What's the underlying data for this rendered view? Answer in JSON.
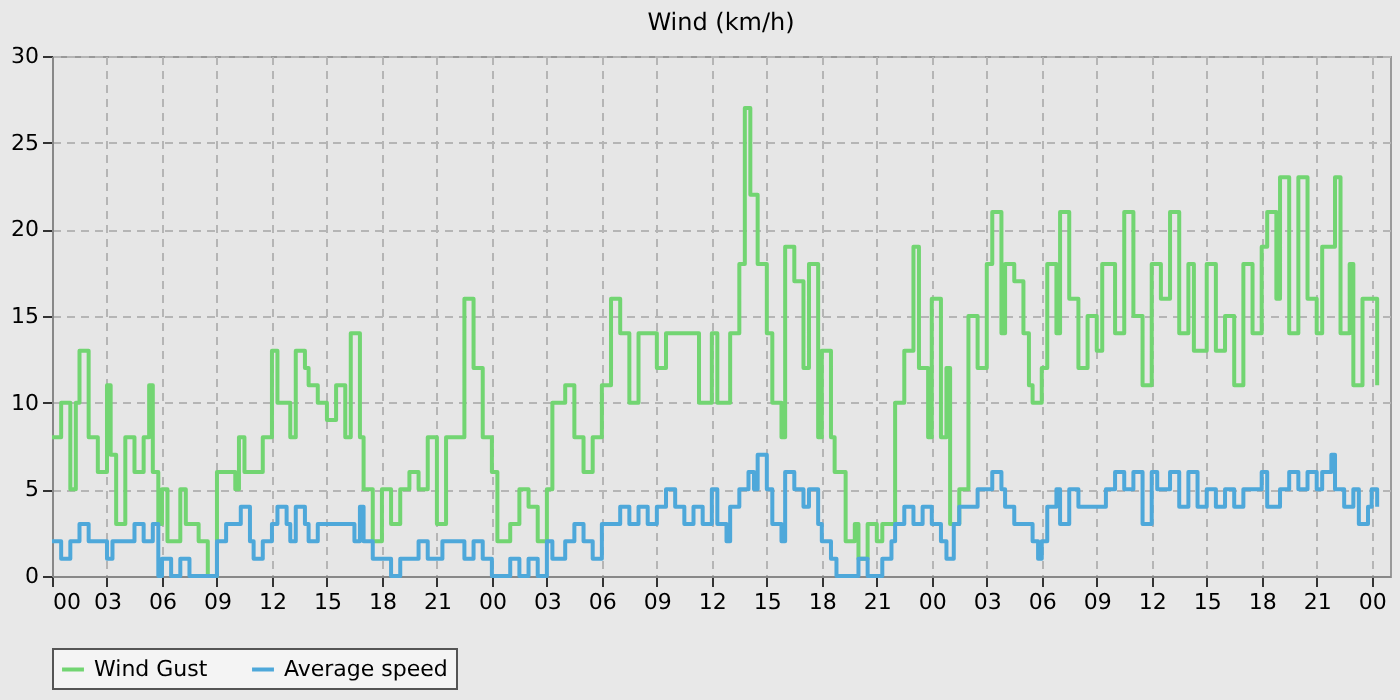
{
  "chart_data": {
    "type": "step",
    "title": "Wind (km/h)",
    "legend": "bottom",
    "grid": true,
    "line_style": "solid",
    "marker": "none",
    "xlim": [
      0,
      73
    ],
    "xticks": [
      {
        "value": 0,
        "label": "00"
      },
      {
        "value": 3,
        "label": "03"
      },
      {
        "value": 6,
        "label": "06"
      },
      {
        "value": 9,
        "label": "09"
      },
      {
        "value": 12,
        "label": "12"
      },
      {
        "value": 15,
        "label": "15"
      },
      {
        "value": 18,
        "label": "18"
      },
      {
        "value": 21,
        "label": "21"
      },
      {
        "value": 24,
        "label": "00"
      },
      {
        "value": 27,
        "label": "03"
      },
      {
        "value": 30,
        "label": "06"
      },
      {
        "value": 33,
        "label": "09"
      },
      {
        "value": 36,
        "label": "12"
      },
      {
        "value": 39,
        "label": "15"
      },
      {
        "value": 42,
        "label": "18"
      },
      {
        "value": 45,
        "label": "21"
      },
      {
        "value": 48,
        "label": "00"
      },
      {
        "value": 51,
        "label": "03"
      },
      {
        "value": 54,
        "label": "06"
      },
      {
        "value": 57,
        "label": "09"
      },
      {
        "value": 60,
        "label": "12"
      },
      {
        "value": 63,
        "label": "15"
      },
      {
        "value": 66,
        "label": "18"
      },
      {
        "value": 69,
        "label": "21"
      },
      {
        "value": 72,
        "label": "00"
      }
    ],
    "ylim": [
      0,
      30
    ],
    "yticks": [
      0,
      5,
      10,
      15,
      20,
      25,
      30
    ],
    "series": [
      {
        "name": "Wind Gust",
        "color": "#72d572",
        "x": [
          0,
          0.5,
          1,
          1.3,
          1.5,
          1.8,
          2,
          2.5,
          3,
          3.2,
          3.5,
          4,
          4.5,
          5,
          5.3,
          5.5,
          5.8,
          6,
          6.3,
          7,
          7.3,
          8,
          8.5,
          9,
          10,
          10.2,
          10.5,
          11.5,
          12,
          12.3,
          13,
          13.3,
          13.8,
          14,
          14.5,
          15,
          15.5,
          16,
          16.3,
          16.8,
          17,
          17.5,
          18,
          18.5,
          19,
          19.5,
          20,
          20.5,
          21,
          21.5,
          22,
          22.5,
          23,
          23.5,
          24,
          24.3,
          25,
          25.5,
          26,
          26.5,
          27,
          27.3,
          28,
          28.5,
          29,
          29.5,
          30,
          30.5,
          31,
          31.5,
          32,
          33,
          33.5,
          35,
          35.3,
          36,
          36.3,
          37,
          37.5,
          37.8,
          38.1,
          38.5,
          39,
          39.3,
          39.8,
          40,
          40.5,
          41,
          41.3,
          41.8,
          42,
          42.5,
          42.7,
          43,
          43.3,
          43.8,
          44,
          44.5,
          45,
          45.3,
          46,
          46.5,
          47,
          47.3,
          47.8,
          48,
          48.5,
          48.8,
          49,
          49.5,
          50,
          50.5,
          51,
          51.3,
          51.8,
          52,
          52.5,
          53,
          53.3,
          53.5,
          54,
          54.3,
          54.8,
          55,
          55.5,
          56,
          56.5,
          57,
          57.3,
          58,
          58.5,
          59,
          59.5,
          60,
          60.5,
          61,
          61.5,
          62,
          62.3,
          63,
          63.5,
          64,
          64.5,
          65,
          65.5,
          66,
          66.3,
          66.8,
          67,
          67.5,
          68,
          68.5,
          69,
          69.3,
          70,
          70.3,
          70.8,
          71,
          71.5,
          72,
          72.3
        ],
        "values": [
          8,
          10,
          5,
          10,
          13,
          13,
          8,
          6,
          11,
          7,
          3,
          8,
          6,
          8,
          11,
          6,
          3,
          5,
          2,
          5,
          3,
          2,
          0,
          6,
          5,
          8,
          6,
          8,
          13,
          10,
          8,
          13,
          12,
          11,
          10,
          9,
          11,
          8,
          14,
          8,
          5,
          2,
          5,
          3,
          5,
          6,
          5,
          8,
          3,
          8,
          8,
          16,
          12,
          8,
          6,
          2,
          3,
          5,
          4,
          2,
          5,
          10,
          11,
          8,
          6,
          8,
          11,
          16,
          14,
          10,
          14,
          12,
          14,
          14,
          10,
          14,
          10,
          14,
          18,
          27,
          22,
          18,
          14,
          10,
          8,
          19,
          17,
          12,
          18,
          8,
          13,
          8,
          6,
          6,
          2,
          3,
          1,
          3,
          2,
          3,
          10,
          13,
          19,
          12,
          8,
          16,
          8,
          12,
          3,
          5,
          15,
          12,
          18,
          21,
          14,
          18,
          17,
          14,
          11,
          10,
          12,
          18,
          14,
          21,
          16,
          12,
          15,
          13,
          18,
          14,
          21,
          15,
          11,
          18,
          16,
          21,
          14,
          18,
          13,
          18,
          13,
          15,
          11,
          18,
          14,
          19,
          21,
          16,
          23,
          14,
          23,
          16,
          14,
          19,
          23,
          14,
          18,
          11,
          16,
          16,
          11
        ]
      },
      {
        "name": "Average speed",
        "color": "#4ea8da",
        "x": [
          0,
          0.5,
          1,
          1.5,
          2,
          3,
          3.3,
          4.5,
          5,
          5.5,
          5.8,
          6,
          6.5,
          7,
          7.5,
          9,
          9.5,
          10.3,
          10.8,
          11,
          11.5,
          12,
          12.3,
          12.8,
          13,
          13.3,
          13.8,
          14,
          14.5,
          16.5,
          16.8,
          17,
          17.5,
          18.5,
          19,
          20,
          20.5,
          21.3,
          22.5,
          23,
          23.5,
          24,
          25,
          25.5,
          26,
          26.5,
          27,
          27.3,
          28,
          28.5,
          29,
          29.5,
          30,
          31,
          31.5,
          32,
          32.5,
          33,
          33.5,
          34,
          34.5,
          35,
          35.5,
          36,
          36.3,
          36.8,
          37,
          37.5,
          38,
          38.3,
          38.5,
          39,
          39.3,
          39.8,
          40,
          40.5,
          41,
          41.3,
          41.8,
          42,
          42.5,
          42.8,
          44,
          44.5,
          45.3,
          45.8,
          46,
          46.5,
          47,
          47.5,
          48,
          48.5,
          48.8,
          49.2,
          49.5,
          50.5,
          51.3,
          51.8,
          52,
          52.5,
          53,
          53.5,
          53.8,
          54,
          54.3,
          54.8,
          55,
          55.5,
          56,
          57.5,
          58,
          58.5,
          59,
          59.5,
          60,
          60.3,
          61,
          61.5,
          62,
          62.5,
          63,
          63.5,
          64,
          64.5,
          65,
          66,
          66.3,
          67,
          67.5,
          68,
          68.5,
          69,
          69.3,
          69.8,
          70,
          70.5,
          71,
          71.3,
          71.8,
          72,
          72.3
        ],
        "values": [
          2,
          1,
          2,
          3,
          2,
          1,
          2,
          3,
          2,
          3,
          0,
          1,
          0,
          1,
          0,
          2,
          3,
          4,
          2,
          1,
          2,
          3,
          4,
          3,
          2,
          4,
          3,
          2,
          3,
          2,
          4,
          2,
          1,
          0,
          1,
          2,
          1,
          2,
          1,
          2,
          1,
          0,
          1,
          0,
          1,
          0,
          2,
          1,
          2,
          3,
          2,
          1,
          3,
          4,
          3,
          4,
          3,
          4,
          5,
          4,
          3,
          4,
          3,
          5,
          3,
          2,
          4,
          5,
          6,
          5,
          7,
          5,
          3,
          2,
          6,
          5,
          4,
          5,
          3,
          2,
          1,
          0,
          1,
          0,
          1,
          2,
          3,
          4,
          3,
          4,
          3,
          2,
          1,
          3,
          4,
          5,
          6,
          5,
          4,
          3,
          3,
          2,
          1,
          2,
          4,
          5,
          3,
          5,
          4,
          5,
          6,
          5,
          6,
          3,
          6,
          5,
          6,
          4,
          6,
          4,
          5,
          4,
          5,
          4,
          5,
          6,
          4,
          5,
          6,
          5,
          6,
          5,
          6,
          7,
          5,
          4,
          5,
          3,
          4,
          5,
          4
        ]
      }
    ]
  }
}
